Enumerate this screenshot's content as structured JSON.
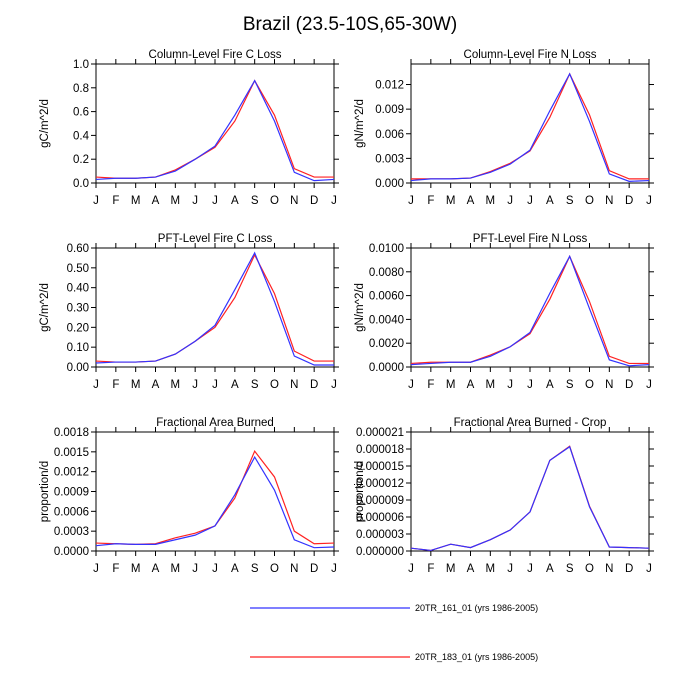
{
  "figure_title": "Brazil (23.5-10S,65-30W)",
  "colors": {
    "series_161": "#3333ff",
    "series_183": "#ff2222",
    "axis": "#000000"
  },
  "chart_data": [
    {
      "type": "line",
      "title": "Column-Level Fire C Loss",
      "ylabel": "gC/m^2/d",
      "categories": [
        "J",
        "F",
        "M",
        "A",
        "M",
        "J",
        "J",
        "A",
        "S",
        "O",
        "N",
        "D",
        "J"
      ],
      "ylim": [
        0,
        1.0
      ],
      "yticks": [
        0,
        0.2,
        0.4,
        0.6,
        0.8,
        1.0
      ],
      "ytick_labels": [
        "0.0",
        "0.2",
        "0.4",
        "0.6",
        "0.8",
        "1.0"
      ],
      "series": [
        {
          "name": "20TR_161_01 (yrs 1986-2005)",
          "values": [
            0.03,
            0.04,
            0.04,
            0.05,
            0.1,
            0.2,
            0.31,
            0.57,
            0.86,
            0.52,
            0.09,
            0.02,
            0.03
          ]
        },
        {
          "name": "20TR_183_01 (yrs 1986-2005)",
          "values": [
            0.05,
            0.04,
            0.04,
            0.05,
            0.11,
            0.2,
            0.3,
            0.52,
            0.86,
            0.57,
            0.12,
            0.05,
            0.05
          ]
        }
      ]
    },
    {
      "type": "line",
      "title": "Column-Level Fire N Loss",
      "ylabel": "gN/m^2/d",
      "categories": [
        "J",
        "F",
        "M",
        "A",
        "M",
        "J",
        "J",
        "A",
        "S",
        "O",
        "N",
        "D",
        "J"
      ],
      "ylim": [
        0,
        0.0145
      ],
      "yticks": [
        0,
        0.003,
        0.006,
        0.009,
        0.012
      ],
      "ytick_labels": [
        "0.000",
        "0.003",
        "0.006",
        "0.009",
        "0.012"
      ],
      "series": [
        {
          "name": "20TR_161_01 (yrs 1986-2005)",
          "values": [
            0.0003,
            0.0005,
            0.0005,
            0.0006,
            0.0013,
            0.0023,
            0.004,
            0.0088,
            0.0133,
            0.0075,
            0.0011,
            0.0002,
            0.0003
          ]
        },
        {
          "name": "20TR_183_01 (yrs 1986-2005)",
          "values": [
            0.0005,
            0.0005,
            0.0005,
            0.0006,
            0.0014,
            0.0024,
            0.0039,
            0.008,
            0.0133,
            0.0083,
            0.0015,
            0.0005,
            0.0005
          ]
        }
      ]
    },
    {
      "type": "line",
      "title": "PFT-Level Fire C Loss",
      "ylabel": "gC/m^2/d",
      "categories": [
        "J",
        "F",
        "M",
        "A",
        "M",
        "J",
        "J",
        "A",
        "S",
        "O",
        "N",
        "D",
        "J"
      ],
      "ylim": [
        0,
        0.6
      ],
      "yticks": [
        0,
        0.1,
        0.2,
        0.3,
        0.4,
        0.5,
        0.6
      ],
      "ytick_labels": [
        "0.00",
        "0.10",
        "0.20",
        "0.30",
        "0.40",
        "0.50",
        "0.60"
      ],
      "series": [
        {
          "name": "20TR_161_01 (yrs 1986-2005)",
          "values": [
            0.02,
            0.025,
            0.025,
            0.03,
            0.065,
            0.13,
            0.21,
            0.39,
            0.575,
            0.33,
            0.055,
            0.01,
            0.01
          ]
        },
        {
          "name": "20TR_183_01 (yrs 1986-2005)",
          "values": [
            0.03,
            0.025,
            0.025,
            0.03,
            0.065,
            0.13,
            0.2,
            0.35,
            0.565,
            0.37,
            0.08,
            0.03,
            0.03
          ]
        }
      ]
    },
    {
      "type": "line",
      "title": "PFT-Level Fire N Loss",
      "ylabel": "gN/m^2/d",
      "categories": [
        "J",
        "F",
        "M",
        "A",
        "M",
        "J",
        "J",
        "A",
        "S",
        "O",
        "N",
        "D",
        "J"
      ],
      "ylim": [
        0,
        0.01
      ],
      "yticks": [
        0,
        0.002,
        0.004,
        0.006,
        0.008,
        0.01
      ],
      "ytick_labels": [
        "0.0000",
        "0.0020",
        "0.0040",
        "0.0060",
        "0.0080",
        "0.0100"
      ],
      "series": [
        {
          "name": "20TR_161_01 (yrs 1986-2005)",
          "values": [
            0.0002,
            0.0003,
            0.0004,
            0.0004,
            0.0009,
            0.0017,
            0.0029,
            0.0062,
            0.0093,
            0.0049,
            0.0006,
            0.0001,
            0.0002
          ]
        },
        {
          "name": "20TR_183_01 (yrs 1986-2005)",
          "values": [
            0.0003,
            0.0004,
            0.0004,
            0.0004,
            0.001,
            0.0017,
            0.0028,
            0.0057,
            0.0093,
            0.0055,
            0.0009,
            0.0003,
            0.0003
          ]
        }
      ]
    },
    {
      "type": "line",
      "title": "Fractional Area Burned",
      "ylabel": "proportion/d",
      "categories": [
        "J",
        "F",
        "M",
        "A",
        "M",
        "J",
        "J",
        "A",
        "S",
        "O",
        "N",
        "D",
        "J"
      ],
      "ylim": [
        0,
        0.0018
      ],
      "yticks": [
        0,
        0.0003,
        0.0006,
        0.0009,
        0.0012,
        0.0015,
        0.0018
      ],
      "ytick_labels": [
        "0.0000",
        "0.0003",
        "0.0006",
        "0.0009",
        "0.0012",
        "0.0015",
        "0.0018"
      ],
      "series": [
        {
          "name": "20TR_161_01 (yrs 1986-2005)",
          "values": [
            8e-05,
            0.00011,
            0.0001,
            0.0001,
            0.00017,
            0.00024,
            0.00038,
            0.00085,
            0.00142,
            0.00092,
            0.00017,
            5e-05,
            6e-05
          ]
        },
        {
          "name": "20TR_183_01 (yrs 1986-2005)",
          "values": [
            0.00012,
            0.00011,
            0.0001,
            0.00011,
            0.0002,
            0.00027,
            0.00038,
            0.0008,
            0.00151,
            0.00112,
            0.0003,
            0.00011,
            0.00012
          ]
        }
      ]
    },
    {
      "type": "line",
      "title": "Fractional Area Burned - Crop",
      "ylabel": "proportion/d",
      "categories": [
        "J",
        "F",
        "M",
        "A",
        "M",
        "J",
        "J",
        "A",
        "S",
        "O",
        "N",
        "D",
        "J"
      ],
      "ylim": [
        0,
        2.1e-05
      ],
      "yticks": [
        0,
        3e-06,
        6e-06,
        9e-06,
        1.2e-05,
        1.5e-05,
        1.8e-05,
        2.1e-05
      ],
      "ytick_labels": [
        "0.000000",
        "0.000003",
        "0.000006",
        "0.000009",
        "0.000012",
        "0.000015",
        "0.000018",
        "0.000021"
      ],
      "series": [
        {
          "name": "20TR_161_01 (yrs 1986-2005)",
          "values": [
            5e-07,
            1e-07,
            1.2e-06,
            6e-07,
            2e-06,
            3.7e-06,
            6.9e-06,
            1.6e-05,
            1.84e-05,
            7.8e-06,
            7e-07,
            6e-07,
            5e-07
          ]
        },
        {
          "name": "20TR_183_01 (yrs 1986-2005)",
          "values": [
            5e-07,
            1e-07,
            1.2e-06,
            6e-07,
            2e-06,
            3.7e-06,
            6.9e-06,
            1.6e-05,
            1.85e-05,
            7.9e-06,
            7e-07,
            6e-07,
            5e-07
          ]
        }
      ]
    }
  ],
  "legend": [
    {
      "label": "20TR_161_01 (yrs 1986-2005)",
      "color": "#3333ff"
    },
    {
      "label": "20TR_183_01 (yrs 1986-2005)",
      "color": "#ff2222"
    }
  ]
}
